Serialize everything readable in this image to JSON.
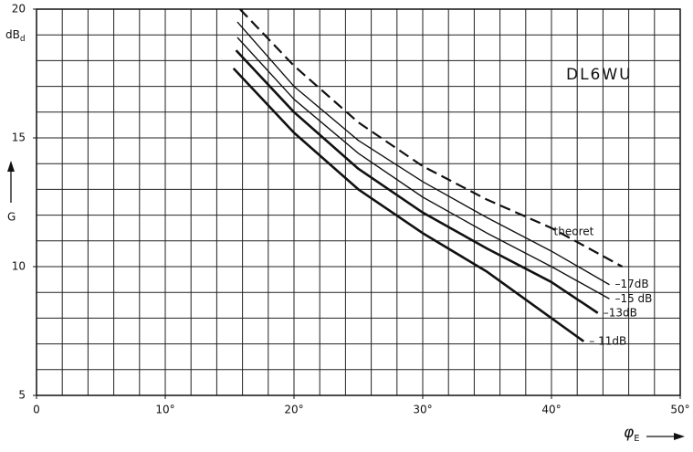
{
  "chart_data": {
    "type": "line",
    "annotation": "DL6WU",
    "y_label": "G",
    "y_unit": "dB",
    "y_unit_sub": "d",
    "x_label": "φ",
    "x_label_sub": "E",
    "xlim": [
      0,
      50
    ],
    "ylim": [
      5,
      20
    ],
    "xticks": [
      0,
      {
        "value": 10,
        "label": "10°"
      },
      {
        "value": 20,
        "label": "20°"
      },
      {
        "value": 30,
        "label": "30°"
      },
      {
        "value": 40,
        "label": "40°"
      },
      {
        "value": 50,
        "label": "50°"
      }
    ],
    "yticks": [
      5,
      10,
      15,
      20
    ],
    "xgrid": [
      0,
      2,
      4,
      6,
      8,
      10,
      12,
      14,
      16,
      18,
      20,
      22,
      24,
      26,
      28,
      30,
      32,
      34,
      36,
      38,
      40,
      42,
      44,
      46,
      48,
      50
    ],
    "ygrid": [
      5,
      6,
      7,
      8,
      9,
      10,
      11,
      12,
      13,
      14,
      15,
      16,
      17,
      18,
      19,
      20
    ],
    "grid": true,
    "series": [
      {
        "name": "theoret",
        "color": "#111",
        "style": "dashed",
        "width": 2.2,
        "x": [
          15.8,
          20,
          25,
          30,
          35,
          40,
          45.5
        ],
        "values": [
          20,
          17.8,
          15.6,
          13.9,
          12.6,
          11.5,
          10.0
        ]
      },
      {
        "name": "–17dB",
        "color": "#111",
        "style": "solid",
        "width": 1.4,
        "x": [
          15.6,
          20,
          25,
          30,
          35,
          40,
          44.5
        ],
        "values": [
          19.5,
          17.0,
          14.9,
          13.3,
          11.9,
          10.6,
          9.3
        ]
      },
      {
        "name": "–15 dB",
        "color": "#111",
        "style": "solid",
        "width": 1.4,
        "x": [
          15.6,
          20,
          25,
          30,
          35,
          40,
          44.5
        ],
        "values": [
          18.9,
          16.5,
          14.4,
          12.7,
          11.3,
          10.0,
          8.75
        ]
      },
      {
        "name": "–13dB",
        "color": "#111",
        "style": "solid",
        "width": 2.6,
        "x": [
          15.5,
          20,
          25,
          30,
          35,
          40,
          43.6
        ],
        "values": [
          18.4,
          16.0,
          13.8,
          12.1,
          10.7,
          9.4,
          8.2
        ]
      },
      {
        "name": "– 11dB",
        "color": "#111",
        "style": "solid",
        "width": 2.6,
        "x": [
          15.3,
          20,
          25,
          30,
          35,
          40,
          42.5
        ],
        "values": [
          17.7,
          15.2,
          13.0,
          11.3,
          9.8,
          8.0,
          7.1
        ]
      }
    ]
  }
}
